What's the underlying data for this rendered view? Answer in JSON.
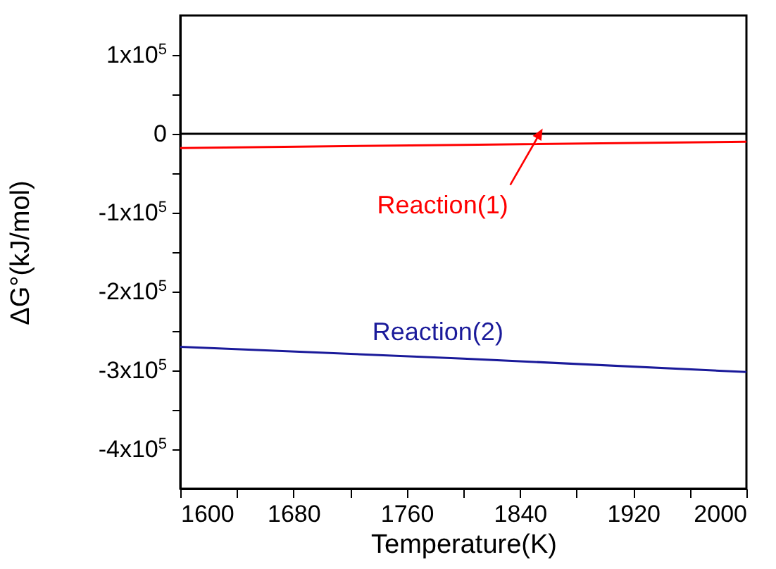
{
  "chart_data": {
    "type": "line",
    "xlabel": "Temperature(K)",
    "ylabel": "ΔG°(kJ/mol)",
    "x": [
      1600,
      1800,
      2000
    ],
    "series": [
      {
        "color": "#ff0000",
        "values": [
          -18000,
          -14000,
          -10000
        ]
      },
      {
        "color": "#1a1a9a",
        "values": [
          -270000,
          -285000,
          -302000
        ]
      }
    ],
    "xlim": [
      1600,
      2000
    ],
    "xticks": [
      1600,
      {
        "value": 1640,
        "label": null
      },
      1680,
      {
        "value": 1720,
        "label": null
      },
      1760,
      {
        "value": 1800,
        "label": null
      },
      1840,
      {
        "value": 1880,
        "label": null
      },
      1920,
      {
        "value": 1960,
        "label": null
      },
      2000
    ],
    "ylim": [
      -450000,
      150000
    ],
    "yticks": [
      {
        "value": -400000,
        "label": "-4x10$^{5}$"
      },
      {
        "value": -350000,
        "label": null
      },
      {
        "value": -300000,
        "label": "-3x10$^{5}$"
      },
      {
        "value": -250000,
        "label": null
      },
      {
        "value": -200000,
        "label": "-2x10$^{5}$"
      },
      {
        "value": -150000,
        "label": null
      },
      {
        "value": -100000,
        "label": "-1x10$^{5}$"
      },
      {
        "value": -50000,
        "label": null
      },
      0,
      {
        "value": 50000,
        "label": null
      },
      {
        "value": 100000,
        "label": "1x10$^{5}$"
      }
    ],
    "ref_lines": [
      {
        "axis": "y",
        "value": 0,
        "color": "#000000"
      }
    ],
    "annotations": [
      {
        "text": "Reaction(1)",
        "x": 1860,
        "y": -13000
      },
      {
        "text": "Reaction(2)",
        "x": 1782,
        "y": -283000
      }
    ],
    "grid": false,
    "legend": false,
    "marker": "none",
    "line_style": "solid"
  }
}
